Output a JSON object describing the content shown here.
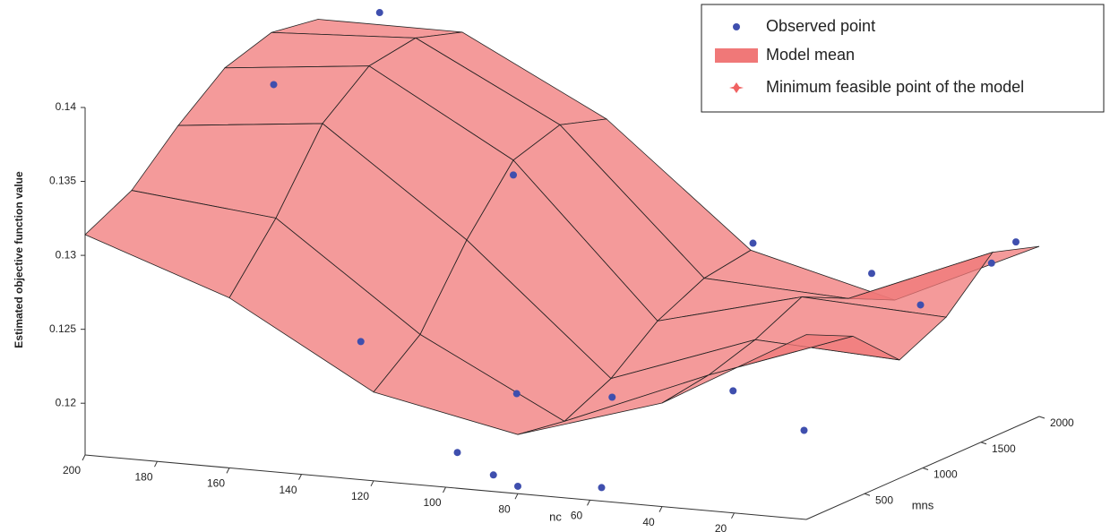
{
  "chart_data": {
    "type": "surface3d",
    "xlabel": "nc",
    "ylabel": "mns",
    "zlabel": "Estimated objective function value",
    "xlim": [
      0,
      200
    ],
    "ylim": [
      0,
      2000
    ],
    "zlim": [
      0.1165,
      0.14
    ],
    "xticks": [
      20,
      40,
      60,
      80,
      100,
      120,
      140,
      160,
      180,
      200
    ],
    "yticks": [
      500,
      1000,
      1500,
      2000
    ],
    "zticks": [
      0.12,
      0.125,
      0.13,
      0.135,
      0.14
    ],
    "legend": "upper right",
    "surface": {
      "name": "Model mean",
      "color": "#f07878",
      "x": [
        200,
        160,
        120,
        80,
        40,
        0
      ],
      "y": [
        0,
        400,
        800,
        1200,
        1600,
        2000
      ],
      "z": [
        [
          0.1314,
          0.128,
          0.1225,
          0.1205,
          0.1235,
          0.129
        ],
        [
          0.133,
          0.132,
          0.125,
          0.12,
          0.124,
          0.1275
        ],
        [
          0.136,
          0.137,
          0.13,
          0.1215,
          0.125,
          0.1245
        ],
        [
          0.1385,
          0.1395,
          0.134,
          0.124,
          0.1265,
          0.126
        ],
        [
          0.1395,
          0.14,
          0.135,
          0.1255,
          0.125,
          0.129
        ],
        [
          0.139,
          0.139,
          0.134,
          0.126,
          0.1235,
          0.128
        ]
      ]
    },
    "points": {
      "name": "Observed point",
      "color": "#3f4fae",
      "x": [
        170,
        180,
        120,
        130,
        90,
        100,
        70,
        60,
        40,
        20,
        10,
        20,
        80,
        90,
        60,
        30,
        0
      ],
      "y": [
        1600,
        1000,
        1200,
        200,
        300,
        100,
        500,
        1400,
        1800,
        1600,
        1900,
        600,
        0,
        100,
        100,
        300,
        1800
      ],
      "z": [
        0.1415,
        0.1385,
        0.133,
        0.125,
        0.122,
        0.1185,
        0.1215,
        0.129,
        0.126,
        0.125,
        0.127,
        0.12,
        0.117,
        0.1172,
        0.117,
        0.1235,
        0.129
      ]
    },
    "minimum": {
      "name": "Minimum feasible point of the model",
      "color": "#f06262"
    }
  }
}
